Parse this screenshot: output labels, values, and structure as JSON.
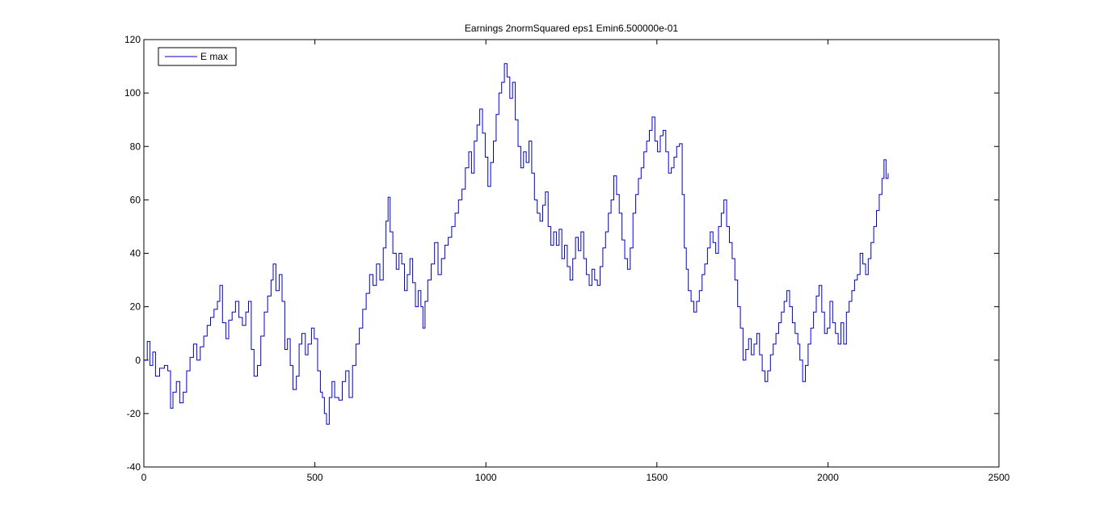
{
  "chart_data": {
    "type": "line",
    "title": "Earnings 2normSquared eps1 Emin6.500000e-01",
    "xlabel": "",
    "ylabel": "",
    "xlim": [
      0,
      2500
    ],
    "ylim": [
      -40,
      120
    ],
    "xticks": [
      0,
      500,
      1000,
      1500,
      2000,
      2500
    ],
    "yticks": [
      -40,
      -20,
      0,
      20,
      40,
      60,
      80,
      100,
      120
    ],
    "grid": false,
    "legend_position": "top-left",
    "series": [
      {
        "name": "E max",
        "color": "#0000cc",
        "step": true,
        "points": [
          [
            0,
            0
          ],
          [
            10,
            7
          ],
          [
            18,
            -2
          ],
          [
            26,
            3
          ],
          [
            34,
            -6
          ],
          [
            46,
            -3
          ],
          [
            60,
            -2
          ],
          [
            70,
            -4
          ],
          [
            78,
            -18
          ],
          [
            85,
            -12
          ],
          [
            95,
            -8
          ],
          [
            105,
            -16
          ],
          [
            115,
            -12
          ],
          [
            125,
            -4
          ],
          [
            135,
            1
          ],
          [
            145,
            6
          ],
          [
            155,
            0
          ],
          [
            165,
            5
          ],
          [
            175,
            9
          ],
          [
            185,
            13
          ],
          [
            195,
            16
          ],
          [
            205,
            19
          ],
          [
            215,
            22
          ],
          [
            222,
            28
          ],
          [
            230,
            14
          ],
          [
            240,
            8
          ],
          [
            248,
            15
          ],
          [
            258,
            18
          ],
          [
            268,
            22
          ],
          [
            278,
            16
          ],
          [
            288,
            13
          ],
          [
            298,
            18
          ],
          [
            306,
            22
          ],
          [
            314,
            4
          ],
          [
            322,
            -6
          ],
          [
            332,
            -2
          ],
          [
            342,
            9
          ],
          [
            352,
            18
          ],
          [
            362,
            24
          ],
          [
            372,
            30
          ],
          [
            378,
            36
          ],
          [
            386,
            26
          ],
          [
            396,
            32
          ],
          [
            404,
            22
          ],
          [
            412,
            4
          ],
          [
            420,
            8
          ],
          [
            428,
            -2
          ],
          [
            436,
            -11
          ],
          [
            446,
            -6
          ],
          [
            454,
            6
          ],
          [
            462,
            10
          ],
          [
            472,
            2
          ],
          [
            480,
            6
          ],
          [
            490,
            12
          ],
          [
            498,
            8
          ],
          [
            508,
            -4
          ],
          [
            516,
            -12
          ],
          [
            522,
            -14
          ],
          [
            528,
            -20
          ],
          [
            534,
            -24
          ],
          [
            542,
            -14
          ],
          [
            550,
            -8
          ],
          [
            558,
            -14
          ],
          [
            570,
            -15
          ],
          [
            580,
            -8
          ],
          [
            590,
            -4
          ],
          [
            600,
            -14
          ],
          [
            610,
            -2
          ],
          [
            620,
            6
          ],
          [
            630,
            12
          ],
          [
            640,
            19
          ],
          [
            650,
            25
          ],
          [
            660,
            32
          ],
          [
            670,
            28
          ],
          [
            680,
            36
          ],
          [
            690,
            30
          ],
          [
            700,
            42
          ],
          [
            708,
            52
          ],
          [
            714,
            61
          ],
          [
            720,
            48
          ],
          [
            728,
            40
          ],
          [
            738,
            34
          ],
          [
            746,
            40
          ],
          [
            754,
            36
          ],
          [
            762,
            26
          ],
          [
            770,
            32
          ],
          [
            778,
            38
          ],
          [
            786,
            29
          ],
          [
            794,
            20
          ],
          [
            802,
            26
          ],
          [
            810,
            20
          ],
          [
            816,
            12
          ],
          [
            822,
            22
          ],
          [
            830,
            30
          ],
          [
            840,
            36
          ],
          [
            850,
            44
          ],
          [
            860,
            32
          ],
          [
            870,
            38
          ],
          [
            880,
            43
          ],
          [
            890,
            46
          ],
          [
            900,
            50
          ],
          [
            910,
            55
          ],
          [
            920,
            60
          ],
          [
            930,
            64
          ],
          [
            940,
            72
          ],
          [
            950,
            78
          ],
          [
            958,
            70
          ],
          [
            966,
            82
          ],
          [
            974,
            88
          ],
          [
            982,
            94
          ],
          [
            990,
            85
          ],
          [
            998,
            76
          ],
          [
            1006,
            65
          ],
          [
            1014,
            74
          ],
          [
            1022,
            82
          ],
          [
            1030,
            92
          ],
          [
            1038,
            100
          ],
          [
            1046,
            104
          ],
          [
            1054,
            111
          ],
          [
            1062,
            106
          ],
          [
            1070,
            98
          ],
          [
            1078,
            104
          ],
          [
            1086,
            90
          ],
          [
            1094,
            80
          ],
          [
            1102,
            72
          ],
          [
            1110,
            78
          ],
          [
            1118,
            74
          ],
          [
            1126,
            82
          ],
          [
            1134,
            70
          ],
          [
            1142,
            60
          ],
          [
            1150,
            55
          ],
          [
            1158,
            52
          ],
          [
            1166,
            58
          ],
          [
            1174,
            63
          ],
          [
            1182,
            50
          ],
          [
            1190,
            43
          ],
          [
            1198,
            48
          ],
          [
            1206,
            43
          ],
          [
            1214,
            49
          ],
          [
            1222,
            38
          ],
          [
            1230,
            43
          ],
          [
            1238,
            35
          ],
          [
            1246,
            30
          ],
          [
            1254,
            38
          ],
          [
            1262,
            46
          ],
          [
            1270,
            41
          ],
          [
            1278,
            48
          ],
          [
            1286,
            38
          ],
          [
            1294,
            32
          ],
          [
            1302,
            28
          ],
          [
            1310,
            34
          ],
          [
            1318,
            30
          ],
          [
            1326,
            28
          ],
          [
            1334,
            35
          ],
          [
            1342,
            42
          ],
          [
            1350,
            48
          ],
          [
            1358,
            55
          ],
          [
            1366,
            60
          ],
          [
            1374,
            69
          ],
          [
            1382,
            62
          ],
          [
            1390,
            55
          ],
          [
            1398,
            45
          ],
          [
            1406,
            38
          ],
          [
            1414,
            34
          ],
          [
            1422,
            42
          ],
          [
            1430,
            55
          ],
          [
            1438,
            62
          ],
          [
            1446,
            68
          ],
          [
            1454,
            72
          ],
          [
            1462,
            78
          ],
          [
            1470,
            82
          ],
          [
            1478,
            86
          ],
          [
            1486,
            91
          ],
          [
            1494,
            82
          ],
          [
            1502,
            78
          ],
          [
            1510,
            84
          ],
          [
            1518,
            86
          ],
          [
            1526,
            78
          ],
          [
            1534,
            70
          ],
          [
            1542,
            72
          ],
          [
            1550,
            76
          ],
          [
            1558,
            80
          ],
          [
            1566,
            81
          ],
          [
            1574,
            62
          ],
          [
            1580,
            42
          ],
          [
            1586,
            34
          ],
          [
            1592,
            26
          ],
          [
            1600,
            22
          ],
          [
            1608,
            18
          ],
          [
            1616,
            22
          ],
          [
            1624,
            26
          ],
          [
            1632,
            32
          ],
          [
            1640,
            36
          ],
          [
            1648,
            42
          ],
          [
            1656,
            48
          ],
          [
            1664,
            44
          ],
          [
            1672,
            40
          ],
          [
            1680,
            50
          ],
          [
            1688,
            55
          ],
          [
            1696,
            60
          ],
          [
            1704,
            50
          ],
          [
            1712,
            44
          ],
          [
            1720,
            38
          ],
          [
            1728,
            30
          ],
          [
            1736,
            20
          ],
          [
            1744,
            12
          ],
          [
            1752,
            0
          ],
          [
            1760,
            4
          ],
          [
            1768,
            8
          ],
          [
            1776,
            2
          ],
          [
            1784,
            6
          ],
          [
            1792,
            10
          ],
          [
            1800,
            2
          ],
          [
            1808,
            -4
          ],
          [
            1816,
            -8
          ],
          [
            1824,
            -4
          ],
          [
            1832,
            2
          ],
          [
            1840,
            6
          ],
          [
            1848,
            10
          ],
          [
            1856,
            14
          ],
          [
            1864,
            18
          ],
          [
            1872,
            22
          ],
          [
            1880,
            26
          ],
          [
            1888,
            20
          ],
          [
            1896,
            14
          ],
          [
            1904,
            10
          ],
          [
            1912,
            6
          ],
          [
            1918,
            0
          ],
          [
            1926,
            -8
          ],
          [
            1934,
            -2
          ],
          [
            1942,
            6
          ],
          [
            1950,
            12
          ],
          [
            1958,
            18
          ],
          [
            1966,
            24
          ],
          [
            1974,
            28
          ],
          [
            1982,
            18
          ],
          [
            1990,
            10
          ],
          [
            1998,
            12
          ],
          [
            2006,
            22
          ],
          [
            2014,
            14
          ],
          [
            2022,
            10
          ],
          [
            2030,
            6
          ],
          [
            2038,
            14
          ],
          [
            2046,
            6
          ],
          [
            2054,
            18
          ],
          [
            2062,
            22
          ],
          [
            2070,
            26
          ],
          [
            2078,
            30
          ],
          [
            2086,
            32
          ],
          [
            2094,
            40
          ],
          [
            2102,
            36
          ],
          [
            2110,
            32
          ],
          [
            2118,
            38
          ],
          [
            2126,
            44
          ],
          [
            2134,
            50
          ],
          [
            2142,
            56
          ],
          [
            2150,
            62
          ],
          [
            2158,
            68
          ],
          [
            2164,
            75
          ],
          [
            2170,
            68
          ],
          [
            2176,
            70
          ]
        ]
      }
    ]
  }
}
